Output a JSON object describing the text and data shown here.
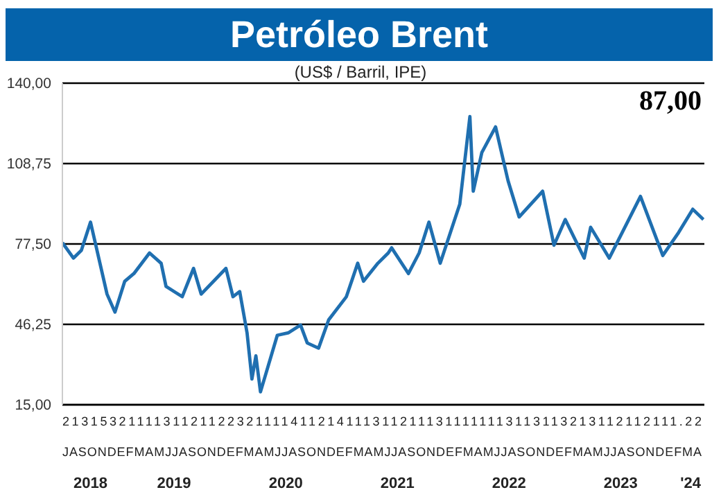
{
  "chart_data": {
    "type": "line",
    "title": "Petróleo Brent",
    "subtitle": "(US$ / Barril, IPE)",
    "annotations": [
      "87,00",
      "21315321111311211223211114112141113112111311111113113113213112112111.22",
      "JASONDEFMAMJJASONDEFMAMJJASONDEFMAMJJASONDEFMAMJJASONDEFMAMJJASONDEFMA"
    ],
    "x": [
      "2018-07-01",
      "2018-08-06",
      "2018-09-01",
      "2018-10-01",
      "2018-11-24",
      "2018-12-20",
      "2019-01-21",
      "2019-02-20",
      "2019-04-12",
      "2019-05-20",
      "2019-06-05",
      "2019-07-28",
      "2019-09-03",
      "2019-09-28",
      "2019-12-18",
      "2020-01-10",
      "2020-02-01",
      "2020-02-25",
      "2020-03-12",
      "2020-03-25",
      "2020-04-09",
      "2020-06-03",
      "2020-07-10",
      "2020-08-18",
      "2020-09-09",
      "2020-10-16",
      "2020-11-18",
      "2021-01-15",
      "2021-02-21",
      "2021-03-12",
      "2021-04-28",
      "2021-06-01",
      "2021-06-12",
      "2021-08-06",
      "2021-09-10",
      "2021-10-12",
      "2021-11-18",
      "2022-01-21",
      "2022-02-23",
      "2022-03-06",
      "2022-04-03",
      "2022-05-18",
      "2022-06-28",
      "2022-08-03",
      "2022-10-19",
      "2022-11-25",
      "2023-01-01",
      "2023-03-04",
      "2023-03-25",
      "2023-05-25",
      "2023-09-04",
      "2023-11-16",
      "2024-01-07",
      "2024-02-22",
      "2024-03-28"
    ],
    "series": [
      {
        "color": "#1f6fb0",
        "values": [
          78,
          72,
          75,
          86,
          58,
          51,
          63,
          66,
          74,
          70,
          61,
          57,
          68,
          58,
          68,
          57,
          59,
          43,
          25,
          34,
          20,
          42,
          43,
          46,
          39,
          37,
          48,
          57,
          70,
          63,
          70,
          74,
          76,
          66,
          74,
          86,
          70,
          93,
          127,
          98,
          113,
          123,
          102,
          88,
          98,
          77,
          87,
          72,
          84,
          72,
          96,
          73,
          82,
          91,
          87
        ]
      }
    ],
    "xlim": [
      "2018-07-01",
      "2024-03-31"
    ],
    "xticks": [
      {
        "value": "2018-10-01",
        "label": "2018"
      },
      {
        "value": "2019-07-01",
        "label": "2019"
      },
      {
        "value": "2020-07-01",
        "label": "2020"
      },
      {
        "value": "2021-07-01",
        "label": "2021"
      },
      {
        "value": "2022-07-01",
        "label": "2022"
      },
      {
        "value": "2023-07-01",
        "label": "2023"
      },
      {
        "value": "2024-02-15",
        "label": "'24"
      }
    ],
    "ylim": [
      15,
      140
    ],
    "yticks": [
      {
        "value": 15,
        "label": "15,00"
      },
      {
        "value": 46.25,
        "label": "46,25"
      },
      {
        "value": 77.5,
        "label": "77,50"
      },
      {
        "value": 108.75,
        "label": "108,75"
      },
      {
        "value": 140,
        "label": "140,00"
      }
    ],
    "grid": "y",
    "legend": false,
    "marker": "none",
    "line_style": "solid"
  }
}
